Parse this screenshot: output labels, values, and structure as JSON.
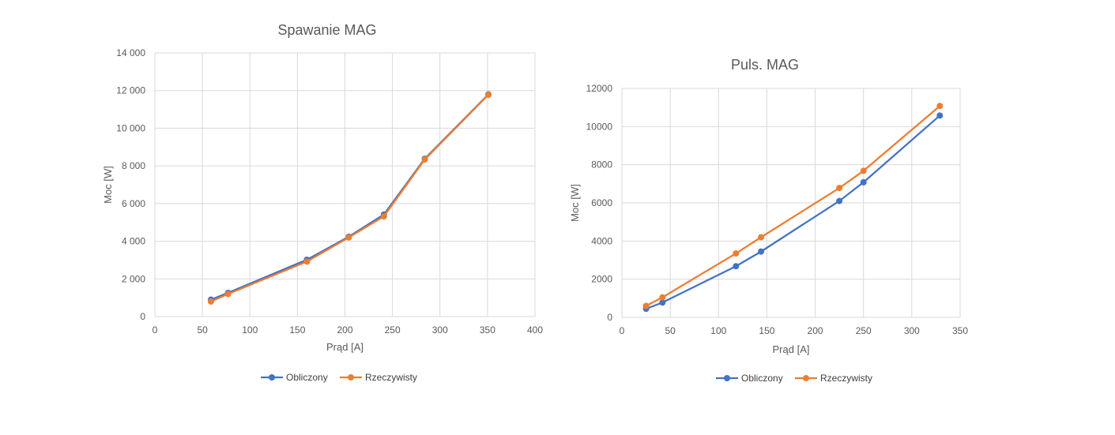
{
  "chart_data": [
    {
      "type": "line",
      "title": "Spawanie MAG",
      "xlabel": "Prąd [A]",
      "ylabel": "Moc [W]",
      "xlim": [
        0,
        400
      ],
      "ylim": [
        0,
        14000
      ],
      "x_ticks": [
        "0",
        "50",
        "100",
        "150",
        "200",
        "250",
        "300",
        "350",
        "400"
      ],
      "y_ticks": [
        "0",
        "2 000",
        "4 000",
        "6 000",
        "8 000",
        "10 000",
        "12 000",
        "14 000"
      ],
      "grid": true,
      "legend_position": "bottom",
      "series": [
        {
          "name": "Obliczony",
          "color": "#4472c4",
          "points": [
            [
              59,
              900
            ],
            [
              77,
              1260
            ],
            [
              160,
              3020
            ],
            [
              204,
              4240
            ],
            [
              241,
              5420
            ],
            [
              284,
              8380
            ],
            [
              351,
              11800
            ]
          ]
        },
        {
          "name": "Rzeczywisty",
          "color": "#ed7d31",
          "points": [
            [
              59,
              800
            ],
            [
              77,
              1200
            ],
            [
              160,
              2920
            ],
            [
              204,
              4200
            ],
            [
              241,
              5320
            ],
            [
              284,
              8340
            ],
            [
              351,
              11780
            ]
          ]
        }
      ]
    },
    {
      "type": "line",
      "title": "Puls. MAG",
      "xlabel": "Prąd [A]",
      "ylabel": "Moc [W]",
      "xlim": [
        0,
        350
      ],
      "ylim": [
        0,
        12000
      ],
      "x_ticks": [
        "0",
        "50",
        "100",
        "150",
        "200",
        "250",
        "300",
        "350"
      ],
      "y_ticks": [
        "0",
        "2000",
        "4000",
        "6000",
        "8000",
        "10000",
        "12000"
      ],
      "grid": true,
      "legend_position": "bottom",
      "series": [
        {
          "name": "Obliczony",
          "color": "#4472c4",
          "points": [
            [
              25,
              450
            ],
            [
              42,
              780
            ],
            [
              118,
              2680
            ],
            [
              144,
              3450
            ],
            [
              225,
              6100
            ],
            [
              250,
              7080
            ],
            [
              329,
              10580
            ]
          ]
        },
        {
          "name": "Rzeczywisty",
          "color": "#ed7d31",
          "points": [
            [
              25,
              600
            ],
            [
              42,
              1050
            ],
            [
              118,
              3350
            ],
            [
              144,
              4200
            ],
            [
              225,
              6780
            ],
            [
              250,
              7680
            ],
            [
              329,
              11080
            ]
          ]
        }
      ]
    }
  ]
}
